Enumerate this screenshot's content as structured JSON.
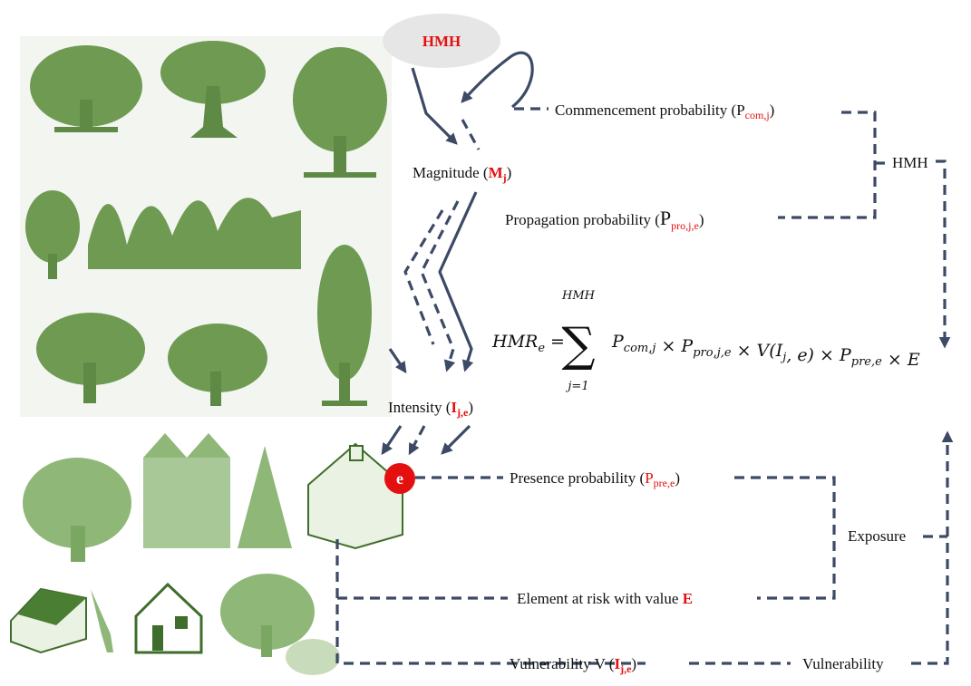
{
  "source": "HMH",
  "commencement": {
    "text": "Commencement probability (",
    "symbol": "P",
    "sub": "com,j",
    "close": ")"
  },
  "magnitude": {
    "text": "Magnitude (",
    "symbol": "M",
    "sub": "j",
    "close": ")"
  },
  "hmh_label": "HMH",
  "propagation": {
    "text": "Propagation probability (",
    "symbol": "P",
    "sub": "pro,j,e",
    "close": ")"
  },
  "formula": {
    "lhs": "HMR",
    "lhs_sub": "e",
    "equals": "=",
    "sum": "∑",
    "sum_upper": "HMH",
    "sum_lower": "j=1",
    "terms": [
      {
        "text": "P",
        "sub": "com,j"
      },
      {
        "text": " × P",
        "sub": "pro,j,e"
      },
      {
        "text": " × V(I",
        "sub": "j"
      },
      {
        "text": ", e) × P",
        "sub": "pre,e"
      },
      {
        "text": " × E"
      }
    ]
  },
  "intensity": {
    "text": "Intensity (",
    "symbol": "I",
    "sub": "j,e",
    "close": ")"
  },
  "element_marker": "e",
  "presence": {
    "text": "Presence probability (",
    "symbol": "P",
    "sub": "pre,e",
    "close": ")"
  },
  "exposure": "Exposure",
  "element": {
    "text": "Element at risk with value ",
    "symbol": "E"
  },
  "vulnerability_v": {
    "text": "Vulnerability V (",
    "symbol": "I",
    "sub": "j,e",
    "close": ")"
  },
  "vulnerability": "Vulnerability"
}
